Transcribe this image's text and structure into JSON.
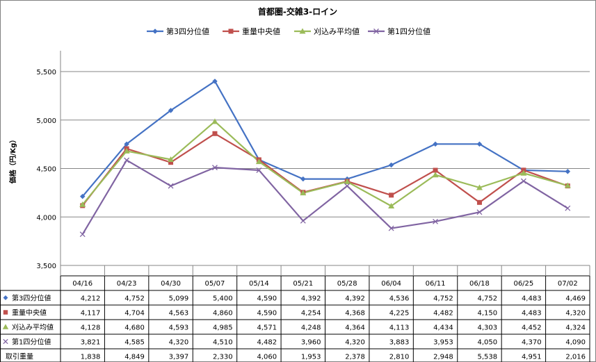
{
  "chart_data": {
    "type": "line",
    "title": "首都圏-交雑3-ロイン",
    "ylabel": "価格（円/Kg）",
    "xlabel": "",
    "ylim": [
      3500,
      5500
    ],
    "yticks": [
      3500,
      4000,
      4500,
      5000,
      5500
    ],
    "ytick_labels": [
      "3,500",
      "4,000",
      "4,500",
      "5,000",
      "5,500"
    ],
    "grid": "horizontal",
    "legend_placement": "top",
    "categories": [
      "04/16",
      "04/23",
      "04/30",
      "05/07",
      "05/14",
      "05/21",
      "05/28",
      "06/04",
      "06/11",
      "06/18",
      "06/25",
      "07/02"
    ],
    "series": [
      {
        "name": "第3四分位値",
        "color": "#4472C4",
        "marker": "diamond",
        "values": [
          4212,
          4752,
          5099,
          5400,
          4590,
          4392,
          4392,
          4536,
          4752,
          4752,
          4483,
          4469
        ]
      },
      {
        "name": "重量中央値",
        "color": "#C0504D",
        "marker": "square",
        "values": [
          4117,
          4704,
          4563,
          4860,
          4590,
          4254,
          4368,
          4225,
          4482,
          4150,
          4483,
          4320
        ]
      },
      {
        "name": "刈込み平均値",
        "color": "#9BBB59",
        "marker": "triangle",
        "values": [
          4128,
          4680,
          4593,
          4985,
          4571,
          4248,
          4364,
          4113,
          4434,
          4303,
          4452,
          4324
        ]
      },
      {
        "name": "第1四分位値",
        "color": "#8064A2",
        "marker": "x",
        "values": [
          3821,
          4585,
          4320,
          4510,
          4482,
          3960,
          4320,
          3883,
          3953,
          4050,
          4370,
          4090
        ]
      }
    ],
    "table": {
      "header": [
        "04/16",
        "04/23",
        "04/30",
        "05/07",
        "05/14",
        "05/21",
        "05/28",
        "06/04",
        "06/11",
        "06/18",
        "06/25",
        "07/02"
      ],
      "rows": [
        {
          "label": "第3四分位値",
          "marker": "diamond",
          "color": "#4472C4",
          "cells": [
            "4,212",
            "4,752",
            "5,099",
            "5,400",
            "4,590",
            "4,392",
            "4,392",
            "4,536",
            "4,752",
            "4,752",
            "4,483",
            "4,469"
          ]
        },
        {
          "label": "重量中央値",
          "marker": "square",
          "color": "#C0504D",
          "cells": [
            "4,117",
            "4,704",
            "4,563",
            "4,860",
            "4,590",
            "4,254",
            "4,368",
            "4,225",
            "4,482",
            "4,150",
            "4,483",
            "4,320"
          ]
        },
        {
          "label": "刈込み平均値",
          "marker": "triangle",
          "color": "#9BBB59",
          "cells": [
            "4,128",
            "4,680",
            "4,593",
            "4,985",
            "4,571",
            "4,248",
            "4,364",
            "4,113",
            "4,434",
            "4,303",
            "4,452",
            "4,324"
          ]
        },
        {
          "label": "第1四分位値",
          "marker": "x",
          "color": "#8064A2",
          "cells": [
            "3,821",
            "4,585",
            "4,320",
            "4,510",
            "4,482",
            "3,960",
            "4,320",
            "3,883",
            "3,953",
            "4,050",
            "4,370",
            "4,090"
          ]
        },
        {
          "label": "取引重量",
          "marker": "",
          "color": "",
          "cells": [
            "1,838",
            "4,849",
            "3,397",
            "2,330",
            "4,060",
            "1,953",
            "2,378",
            "2,810",
            "2,948",
            "5,538",
            "4,951",
            "2,016"
          ]
        }
      ]
    }
  }
}
